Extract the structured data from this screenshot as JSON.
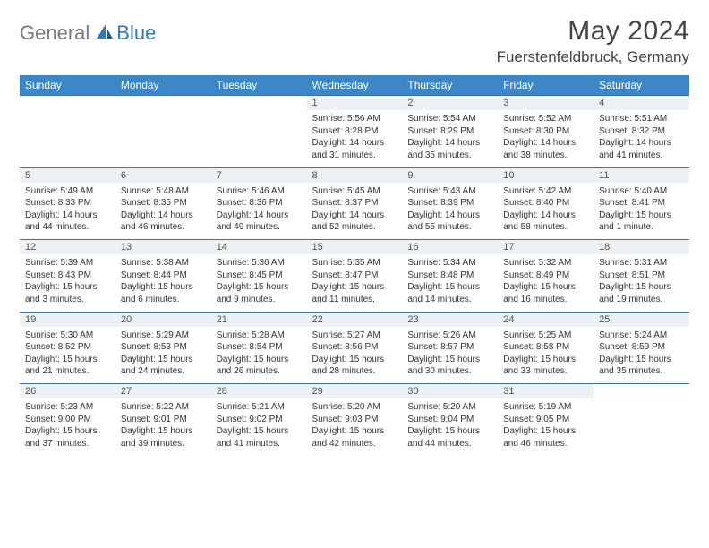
{
  "brand": {
    "part1": "General",
    "part2": "Blue"
  },
  "title": "May 2024",
  "location": "Fuerstenfeldbruck, Germany",
  "colors": {
    "header_bg": "#3b87c8",
    "header_text": "#ffffff",
    "daynum_bg": "#eef1f4",
    "row_divider": "#3b6fa0",
    "logo_gray": "#7a7a7a",
    "logo_blue": "#2f7abf",
    "text": "#333333",
    "title_text": "#444444"
  },
  "days_of_week": [
    "Sunday",
    "Monday",
    "Tuesday",
    "Wednesday",
    "Thursday",
    "Friday",
    "Saturday"
  ],
  "weeks": [
    [
      null,
      null,
      null,
      {
        "n": "1",
        "sr": "5:56 AM",
        "ss": "8:28 PM",
        "dl": "14 hours and 31 minutes."
      },
      {
        "n": "2",
        "sr": "5:54 AM",
        "ss": "8:29 PM",
        "dl": "14 hours and 35 minutes."
      },
      {
        "n": "3",
        "sr": "5:52 AM",
        "ss": "8:30 PM",
        "dl": "14 hours and 38 minutes."
      },
      {
        "n": "4",
        "sr": "5:51 AM",
        "ss": "8:32 PM",
        "dl": "14 hours and 41 minutes."
      }
    ],
    [
      {
        "n": "5",
        "sr": "5:49 AM",
        "ss": "8:33 PM",
        "dl": "14 hours and 44 minutes."
      },
      {
        "n": "6",
        "sr": "5:48 AM",
        "ss": "8:35 PM",
        "dl": "14 hours and 46 minutes."
      },
      {
        "n": "7",
        "sr": "5:46 AM",
        "ss": "8:36 PM",
        "dl": "14 hours and 49 minutes."
      },
      {
        "n": "8",
        "sr": "5:45 AM",
        "ss": "8:37 PM",
        "dl": "14 hours and 52 minutes."
      },
      {
        "n": "9",
        "sr": "5:43 AM",
        "ss": "8:39 PM",
        "dl": "14 hours and 55 minutes."
      },
      {
        "n": "10",
        "sr": "5:42 AM",
        "ss": "8:40 PM",
        "dl": "14 hours and 58 minutes."
      },
      {
        "n": "11",
        "sr": "5:40 AM",
        "ss": "8:41 PM",
        "dl": "15 hours and 1 minute."
      }
    ],
    [
      {
        "n": "12",
        "sr": "5:39 AM",
        "ss": "8:43 PM",
        "dl": "15 hours and 3 minutes."
      },
      {
        "n": "13",
        "sr": "5:38 AM",
        "ss": "8:44 PM",
        "dl": "15 hours and 6 minutes."
      },
      {
        "n": "14",
        "sr": "5:36 AM",
        "ss": "8:45 PM",
        "dl": "15 hours and 9 minutes."
      },
      {
        "n": "15",
        "sr": "5:35 AM",
        "ss": "8:47 PM",
        "dl": "15 hours and 11 minutes."
      },
      {
        "n": "16",
        "sr": "5:34 AM",
        "ss": "8:48 PM",
        "dl": "15 hours and 14 minutes."
      },
      {
        "n": "17",
        "sr": "5:32 AM",
        "ss": "8:49 PM",
        "dl": "15 hours and 16 minutes."
      },
      {
        "n": "18",
        "sr": "5:31 AM",
        "ss": "8:51 PM",
        "dl": "15 hours and 19 minutes."
      }
    ],
    [
      {
        "n": "19",
        "sr": "5:30 AM",
        "ss": "8:52 PM",
        "dl": "15 hours and 21 minutes."
      },
      {
        "n": "20",
        "sr": "5:29 AM",
        "ss": "8:53 PM",
        "dl": "15 hours and 24 minutes."
      },
      {
        "n": "21",
        "sr": "5:28 AM",
        "ss": "8:54 PM",
        "dl": "15 hours and 26 minutes."
      },
      {
        "n": "22",
        "sr": "5:27 AM",
        "ss": "8:56 PM",
        "dl": "15 hours and 28 minutes."
      },
      {
        "n": "23",
        "sr": "5:26 AM",
        "ss": "8:57 PM",
        "dl": "15 hours and 30 minutes."
      },
      {
        "n": "24",
        "sr": "5:25 AM",
        "ss": "8:58 PM",
        "dl": "15 hours and 33 minutes."
      },
      {
        "n": "25",
        "sr": "5:24 AM",
        "ss": "8:59 PM",
        "dl": "15 hours and 35 minutes."
      }
    ],
    [
      {
        "n": "26",
        "sr": "5:23 AM",
        "ss": "9:00 PM",
        "dl": "15 hours and 37 minutes."
      },
      {
        "n": "27",
        "sr": "5:22 AM",
        "ss": "9:01 PM",
        "dl": "15 hours and 39 minutes."
      },
      {
        "n": "28",
        "sr": "5:21 AM",
        "ss": "9:02 PM",
        "dl": "15 hours and 41 minutes."
      },
      {
        "n": "29",
        "sr": "5:20 AM",
        "ss": "9:03 PM",
        "dl": "15 hours and 42 minutes."
      },
      {
        "n": "30",
        "sr": "5:20 AM",
        "ss": "9:04 PM",
        "dl": "15 hours and 44 minutes."
      },
      {
        "n": "31",
        "sr": "5:19 AM",
        "ss": "9:05 PM",
        "dl": "15 hours and 46 minutes."
      },
      null
    ]
  ],
  "labels": {
    "sunrise": "Sunrise:",
    "sunset": "Sunset:",
    "daylight": "Daylight:"
  }
}
